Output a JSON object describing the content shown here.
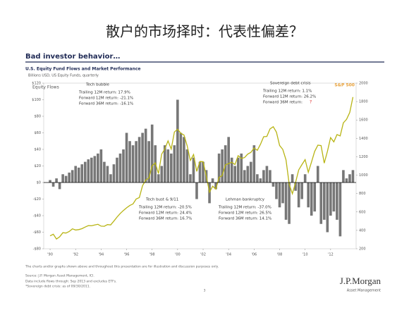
{
  "slide": {
    "title": "散户的市场择时：代表性偏差？",
    "heading": "Bad investor behavior…",
    "footnotes": [
      "The charts and/or graphs shown above and throughout this presentation are for illustration and discussion purposes only.",
      "Source: J.P. Morgan Asset Management, ICI.",
      "Data include flows through: Sep 2013 and excludes ETFs.",
      "*Sovereign debt crisis: as of 09/30/2011."
    ],
    "page": "3",
    "logo": "J.P.Morgan",
    "logo_sub": "Asset Management"
  },
  "chart_data": {
    "type": "bar",
    "title": "U.S. Equity Fund Flows and Market Performance",
    "subtitle": "Billions USD, US Equity Funds, quarterly",
    "ylabel": "Equity Flows",
    "x": [
      1990,
      1990.25,
      1990.5,
      1990.75,
      1991,
      1991.25,
      1991.5,
      1991.75,
      1992,
      1992.25,
      1992.5,
      1992.75,
      1993,
      1993.25,
      1993.5,
      1993.75,
      1994,
      1994.25,
      1994.5,
      1994.75,
      1995,
      1995.25,
      1995.5,
      1995.75,
      1996,
      1996.25,
      1996.5,
      1996.75,
      1997,
      1997.25,
      1997.5,
      1997.75,
      1998,
      1998.25,
      1998.5,
      1998.75,
      1999,
      1999.25,
      1999.5,
      1999.75,
      2000,
      2000.25,
      2000.5,
      2000.75,
      2001,
      2001.25,
      2001.5,
      2001.75,
      2002,
      2002.25,
      2002.5,
      2002.75,
      2003,
      2003.25,
      2003.5,
      2003.75,
      2004,
      2004.25,
      2004.5,
      2004.75,
      2005,
      2005.25,
      2005.5,
      2005.75,
      2006,
      2006.25,
      2006.5,
      2006.75,
      2007,
      2007.25,
      2007.5,
      2007.75,
      2008,
      2008.25,
      2008.5,
      2008.75,
      2009,
      2009.25,
      2009.5,
      2009.75,
      2010,
      2010.25,
      2010.5,
      2010.75,
      2011,
      2011.25,
      2011.5,
      2011.75,
      2012,
      2012.25,
      2012.5,
      2012.75,
      2013,
      2013.25,
      2013.5,
      2013.75
    ],
    "series": [
      {
        "name": "Equity Flows",
        "color": "#777777",
        "values": [
          3,
          -5,
          5,
          -8,
          10,
          8,
          12,
          15,
          20,
          18,
          22,
          25,
          28,
          30,
          32,
          35,
          40,
          25,
          20,
          10,
          22,
          30,
          35,
          40,
          60,
          50,
          45,
          50,
          55,
          60,
          65,
          50,
          70,
          45,
          10,
          20,
          45,
          40,
          35,
          45,
          100,
          60,
          55,
          40,
          10,
          30,
          -20,
          25,
          25,
          15,
          -25,
          5,
          -8,
          35,
          40,
          45,
          55,
          30,
          20,
          30,
          35,
          15,
          20,
          25,
          45,
          10,
          5,
          15,
          20,
          15,
          -5,
          -20,
          -30,
          -25,
          -45,
          -50,
          10,
          -10,
          -30,
          -20,
          10,
          -30,
          -40,
          -35,
          20,
          -50,
          -45,
          -60,
          -40,
          -35,
          -45,
          -65,
          15,
          5,
          10,
          15
        ]
      },
      {
        "name": "S&P 500",
        "color": "#b8b414",
        "axis": "y2",
        "values": [
          340,
          358,
          306,
          330,
          375,
          371,
          388,
          417,
          404,
          408,
          418,
          436,
          452,
          450,
          459,
          466,
          446,
          444,
          463,
          459,
          500,
          545,
          584,
          616,
          645,
          670,
          687,
          741,
          757,
          885,
          947,
          970,
          1101,
          1134,
          1017,
          1229,
          1286,
          1373,
          1283,
          1469,
          1499,
          1455,
          1436,
          1320,
          1160,
          1224,
          1041,
          1148,
          1147,
          990,
          815,
          880,
          848,
          975,
          996,
          1112,
          1126,
          1141,
          1115,
          1212,
          1181,
          1191,
          1229,
          1248,
          1295,
          1270,
          1336,
          1418,
          1421,
          1503,
          1527,
          1468,
          1323,
          1280,
          1166,
          903,
          798,
          919,
          1057,
          1115,
          1169,
          1031,
          1141,
          1258,
          1326,
          1321,
          1131,
          1258,
          1408,
          1362,
          1441,
          1426,
          1569,
          1606,
          1682,
          1848
        ]
      }
    ],
    "xlim": [
      1989.5,
      2014
    ],
    "xticks": [
      {
        "value": 1990,
        "label": "'90"
      },
      {
        "value": 1992,
        "label": "'92"
      },
      {
        "value": 1994,
        "label": "'94"
      },
      {
        "value": 1996,
        "label": "'96"
      },
      {
        "value": 1998,
        "label": "'98"
      },
      {
        "value": 2000,
        "label": "'00"
      },
      {
        "value": 2002,
        "label": "'02"
      },
      {
        "value": 2004,
        "label": "'04"
      },
      {
        "value": 2006,
        "label": "'06"
      },
      {
        "value": 2008,
        "label": "'08"
      },
      {
        "value": 2010,
        "label": "'10"
      },
      {
        "value": 2012,
        "label": "'12"
      }
    ],
    "ylim": [
      -80,
      120
    ],
    "yticks": [
      {
        "value": -80,
        "label": "-$80"
      },
      {
        "value": -60,
        "label": "-$60"
      },
      {
        "value": -40,
        "label": "-$40"
      },
      {
        "value": -20,
        "label": "-$20"
      },
      {
        "value": 0,
        "label": "$0"
      },
      {
        "value": 20,
        "label": "$20"
      },
      {
        "value": 40,
        "label": "$40"
      },
      {
        "value": 60,
        "label": "$60"
      },
      {
        "value": 80,
        "label": "$80"
      },
      {
        "value": 100,
        "label": "$100"
      },
      {
        "value": 120,
        "label": "$120"
      }
    ],
    "y2lim": [
      200,
      2000
    ],
    "y2ticks": [
      200,
      400,
      600,
      800,
      1000,
      1200,
      1400,
      1600,
      1800,
      2000
    ],
    "annotations": [
      {
        "title": "Tech bubble",
        "lines": [
          "Trailing 12M return: 17.9%",
          "Forward 12M return: -21.1%",
          "Forward 36M return: -16.1%"
        ]
      },
      {
        "title": "Tech bust & 9/11",
        "lines": [
          "Trailing 12M return: -20.5%",
          "Forward 12M return: 24.4%",
          "Forward 36M return: 16.7%"
        ]
      },
      {
        "title": "Lehman bankruptcy",
        "lines": [
          "Trailing 12M return: -37.0%",
          "Forward 12M return: 26.5%",
          "Forward 36M return: 14.1%"
        ]
      },
      {
        "title": "Sovereign debt crisis",
        "lines": [
          "Trailing 12M return: 1.1%",
          "Forward 12M return: 26.2%",
          "Forward 36M return:"
        ],
        "mark": "?"
      }
    ]
  }
}
